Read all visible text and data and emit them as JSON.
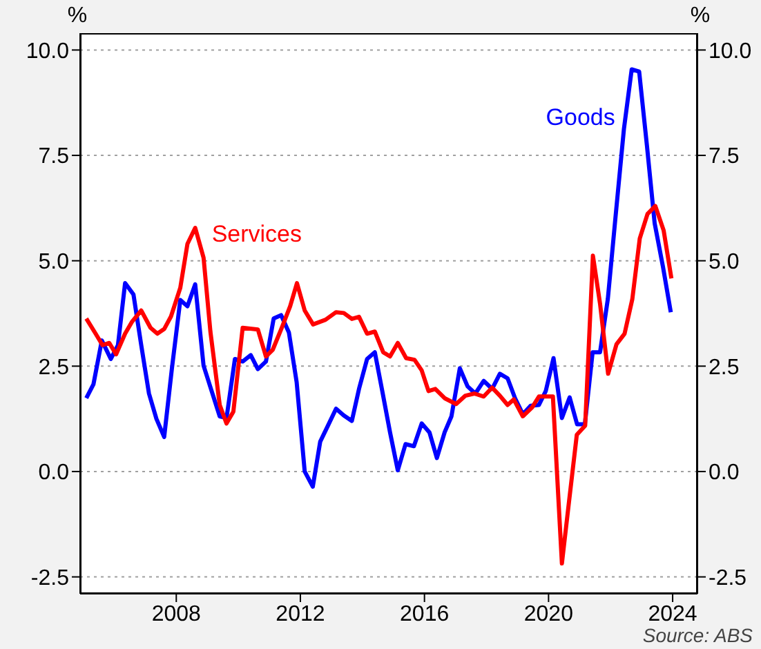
{
  "chart_data": {
    "type": "line",
    "ylabel": "%",
    "y2label": "%",
    "annotations": [
      "Source: ABS"
    ],
    "xlim": [
      2004.9,
      2024.8
    ],
    "xticks": [
      2008,
      2012,
      2016,
      2020,
      2024
    ],
    "ylim": [
      -2.9,
      10.4
    ],
    "yticks": [
      {
        "value": -2.5,
        "label": "-2.5"
      },
      {
        "value": 0,
        "label": "0.0"
      },
      {
        "value": 2.5,
        "label": "2.5"
      },
      {
        "value": 5,
        "label": "5.0"
      },
      {
        "value": 7.5,
        "label": "7.5"
      },
      {
        "value": 10,
        "label": "10.0"
      }
    ],
    "y2lim": [
      -2.9,
      10.4
    ],
    "y2ticks": [
      {
        "value": -2.5,
        "label": "-2.5"
      },
      {
        "value": 0,
        "label": "0.0"
      },
      {
        "value": 2.5,
        "label": "2.5"
      },
      {
        "value": 5,
        "label": "5.0"
      },
      {
        "value": 7.5,
        "label": "7.5"
      },
      {
        "value": 10,
        "label": "10.0"
      }
    ],
    "grid": "y",
    "marker": "none",
    "line_style": "solid",
    "series": [
      {
        "name": "Goods",
        "color": "#0000ff",
        "x": [
          2005.1,
          2005.33,
          2005.6,
          2005.89,
          2006.12,
          2006.35,
          2006.62,
          2006.87,
          2007.12,
          2007.36,
          2007.61,
          2007.86,
          2008.13,
          2008.36,
          2008.61,
          2008.88,
          2009.14,
          2009.4,
          2009.62,
          2009.89,
          2010.14,
          2010.4,
          2010.63,
          2010.89,
          2011.14,
          2011.38,
          2011.63,
          2011.88,
          2012.14,
          2012.4,
          2012.64,
          2012.89,
          2013.15,
          2013.4,
          2013.66,
          2013.89,
          2014.15,
          2014.4,
          2014.64,
          2014.89,
          2015.14,
          2015.39,
          2015.66,
          2015.91,
          2016.16,
          2016.4,
          2016.65,
          2016.87,
          2017.14,
          2017.39,
          2017.64,
          2017.91,
          2018.18,
          2018.43,
          2018.68,
          2018.92,
          2019.17,
          2019.42,
          2019.69,
          2019.91,
          2020.16,
          2020.43,
          2020.68,
          2020.92,
          2021.17,
          2021.42,
          2021.66,
          2021.91,
          2022.16,
          2022.43,
          2022.68,
          2022.92,
          2023.17,
          2023.42,
          2023.69,
          2023.94
        ],
        "values": [
          1.74,
          2.07,
          3.11,
          2.67,
          3.0,
          4.47,
          4.2,
          3.0,
          1.85,
          1.25,
          0.82,
          2.45,
          4.07,
          3.92,
          4.44,
          2.51,
          1.91,
          1.31,
          1.27,
          2.67,
          2.61,
          2.76,
          2.43,
          2.61,
          3.63,
          3.71,
          3.3,
          2.12,
          0.0,
          -0.36,
          0.71,
          1.09,
          1.49,
          1.33,
          1.2,
          1.96,
          2.67,
          2.83,
          1.91,
          0.93,
          0.03,
          0.65,
          0.6,
          1.14,
          0.93,
          0.32,
          0.93,
          1.31,
          2.45,
          2.02,
          1.85,
          2.15,
          1.96,
          2.32,
          2.21,
          1.74,
          1.36,
          1.56,
          1.58,
          1.91,
          2.69,
          1.27,
          1.76,
          1.12,
          1.12,
          2.83,
          2.83,
          4.09,
          6.05,
          8.13,
          9.54,
          9.49,
          7.74,
          5.89,
          4.85,
          3.78
        ]
      },
      {
        "name": "Services",
        "color": "#ff0000",
        "x": [
          2005.1,
          2005.4,
          2005.62,
          2005.84,
          2006.06,
          2006.35,
          2006.58,
          2006.87,
          2007.17,
          2007.39,
          2007.61,
          2007.83,
          2008.13,
          2008.36,
          2008.61,
          2008.88,
          2009.1,
          2009.4,
          2009.62,
          2009.84,
          2010.14,
          2010.63,
          2010.89,
          2011.11,
          2011.41,
          2011.67,
          2011.89,
          2012.14,
          2012.41,
          2012.81,
          2013.15,
          2013.4,
          2013.66,
          2013.89,
          2014.15,
          2014.4,
          2014.67,
          2014.89,
          2015.14,
          2015.41,
          2015.68,
          2015.91,
          2016.13,
          2016.35,
          2016.65,
          2017.02,
          2017.32,
          2017.61,
          2017.91,
          2018.18,
          2018.43,
          2018.68,
          2018.88,
          2019.17,
          2019.47,
          2019.69,
          2020.14,
          2020.43,
          2020.66,
          2020.91,
          2021.18,
          2021.43,
          2021.66,
          2021.92,
          2022.19,
          2022.45,
          2022.7,
          2022.94,
          2023.19,
          2023.44,
          2023.71,
          2023.96
        ],
        "values": [
          3.63,
          3.27,
          3.0,
          3.05,
          2.78,
          3.27,
          3.56,
          3.82,
          3.41,
          3.27,
          3.38,
          3.68,
          4.36,
          5.4,
          5.78,
          5.07,
          3.32,
          1.58,
          1.14,
          1.42,
          3.41,
          3.37,
          2.73,
          2.89,
          3.43,
          3.92,
          4.47,
          3.82,
          3.49,
          3.6,
          3.78,
          3.76,
          3.62,
          3.67,
          3.27,
          3.32,
          2.83,
          2.73,
          3.05,
          2.69,
          2.65,
          2.4,
          1.91,
          1.96,
          1.74,
          1.6,
          1.8,
          1.85,
          1.78,
          1.99,
          1.8,
          1.58,
          1.71,
          1.31,
          1.52,
          1.78,
          1.78,
          -2.18,
          -0.71,
          0.87,
          1.09,
          5.12,
          3.98,
          2.32,
          3.02,
          3.27,
          4.09,
          5.53,
          6.11,
          6.3,
          5.72,
          4.58
        ]
      }
    ]
  }
}
